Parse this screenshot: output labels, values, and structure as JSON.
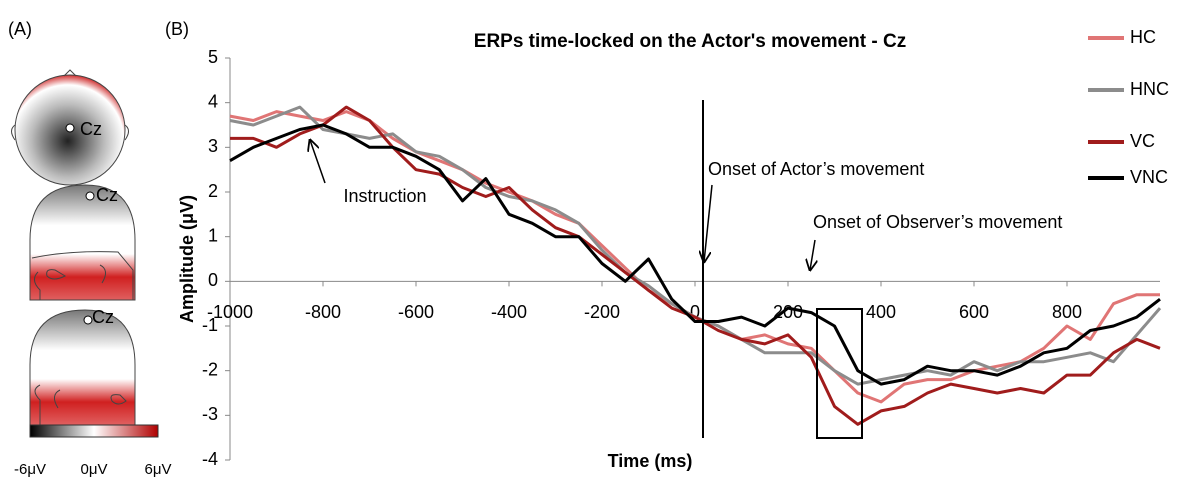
{
  "panel_labels": [
    "(A)",
    "(B)"
  ],
  "panel_a": {
    "electrode_labels": [
      "Cz",
      "Cz",
      "Cz"
    ],
    "colorbar_ticks": [
      "-6μV",
      "0μV",
      "6μV"
    ]
  },
  "chart_data": {
    "type": "line",
    "title": "ERPs time-locked on the Actor's movement - Cz",
    "x_label": "Time (ms)",
    "y_label": "Amplitude (μV)",
    "x": [
      -1000,
      -950,
      -900,
      -850,
      -800,
      -750,
      -700,
      -650,
      -600,
      -550,
      -500,
      -450,
      -400,
      -350,
      -300,
      -250,
      -200,
      -150,
      -100,
      -50,
      0,
      50,
      100,
      150,
      200,
      250,
      300,
      350,
      400,
      450,
      500,
      550,
      600,
      650,
      700,
      750,
      800,
      850,
      900,
      950,
      1000
    ],
    "series": [
      {
        "name": "HC",
        "color": "#e07575",
        "values": [
          3.7,
          3.6,
          3.8,
          3.7,
          3.6,
          3.8,
          3.6,
          3.2,
          2.9,
          2.7,
          2.5,
          2.2,
          2.0,
          1.8,
          1.5,
          1.3,
          0.8,
          0.3,
          -0.2,
          -0.5,
          -0.8,
          -1.0,
          -1.3,
          -1.2,
          -1.4,
          -1.5,
          -2.0,
          -2.5,
          -2.7,
          -2.3,
          -2.2,
          -2.2,
          -2.0,
          -1.9,
          -1.8,
          -1.5,
          -1.0,
          -1.3,
          -0.5,
          -0.3,
          -0.3
        ]
      },
      {
        "name": "HNC",
        "color": "#8c8c8c",
        "values": [
          3.6,
          3.5,
          3.7,
          3.9,
          3.4,
          3.3,
          3.2,
          3.3,
          2.9,
          2.8,
          2.5,
          2.1,
          1.9,
          1.8,
          1.6,
          1.3,
          0.7,
          0.2,
          -0.1,
          -0.5,
          -0.8,
          -1.0,
          -1.3,
          -1.6,
          -1.6,
          -1.6,
          -2.0,
          -2.3,
          -2.2,
          -2.1,
          -2.0,
          -2.1,
          -1.8,
          -2.0,
          -1.8,
          -1.8,
          -1.7,
          -1.6,
          -1.8,
          -1.2,
          -0.6
        ]
      },
      {
        "name": "VC",
        "color": "#a01c1c",
        "values": [
          3.2,
          3.2,
          3.0,
          3.3,
          3.5,
          3.9,
          3.6,
          3.0,
          2.5,
          2.4,
          2.1,
          1.9,
          2.1,
          1.6,
          1.2,
          1.0,
          0.6,
          0.2,
          -0.2,
          -0.6,
          -0.8,
          -1.1,
          -1.3,
          -1.4,
          -1.2,
          -1.7,
          -2.8,
          -3.2,
          -2.9,
          -2.8,
          -2.5,
          -2.3,
          -2.4,
          -2.5,
          -2.4,
          -2.5,
          -2.1,
          -2.1,
          -1.6,
          -1.3,
          -1.5
        ]
      },
      {
        "name": "VNC",
        "color": "#000000",
        "values": [
          2.7,
          3.0,
          3.2,
          3.4,
          3.5,
          3.3,
          3.0,
          3.0,
          2.8,
          2.5,
          1.8,
          2.3,
          1.5,
          1.3,
          1.0,
          1.0,
          0.4,
          0.0,
          0.5,
          -0.4,
          -0.9,
          -0.9,
          -0.8,
          -1.0,
          -0.6,
          -0.7,
          -1.0,
          -2.0,
          -2.3,
          -2.2,
          -1.9,
          -2.0,
          -2.0,
          -2.1,
          -1.9,
          -1.6,
          -1.5,
          -1.1,
          -1.0,
          -0.8,
          -0.4
        ]
      }
    ],
    "xlim": [
      -1000,
      1000
    ],
    "xticks": [
      -1000,
      -800,
      -600,
      -400,
      -200,
      0,
      200,
      400,
      600,
      800
    ],
    "ylim": [
      -4,
      5
    ],
    "yticks": [
      -4,
      -3,
      -2,
      -1,
      0,
      1,
      2,
      3,
      4,
      5
    ],
    "legend": "right",
    "annotations": [
      "Instruction",
      "Onset of Actor’s movement",
      "Onset of Observer’s movement"
    ]
  }
}
